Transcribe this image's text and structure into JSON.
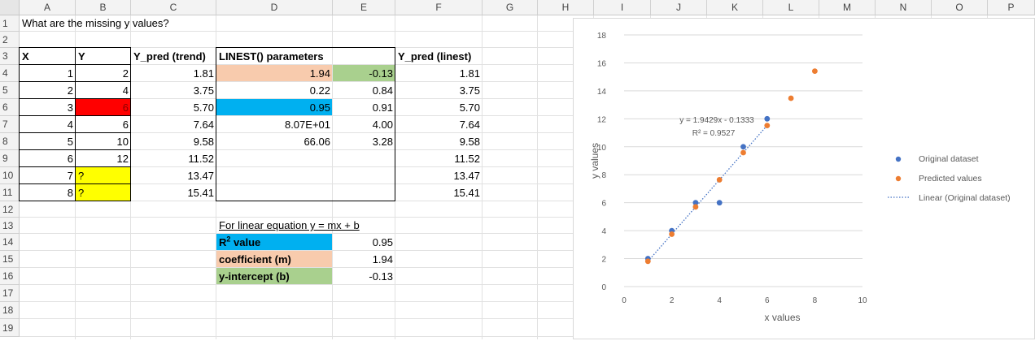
{
  "column_headers": [
    "A",
    "B",
    "C",
    "D",
    "E",
    "F",
    "G",
    "H",
    "I",
    "J",
    "K",
    "L",
    "M",
    "N",
    "O",
    "P"
  ],
  "row_headers": [
    "1",
    "2",
    "3",
    "4",
    "5",
    "6",
    "7",
    "8",
    "9",
    "10",
    "11",
    "12",
    "13",
    "14",
    "15",
    "16",
    "17",
    "18",
    "19"
  ],
  "colors": {
    "peach": "#f8cbad",
    "green": "#a9d08e",
    "blue": "#00b0f0",
    "red": "#ff0000",
    "yellow": "#ffff00",
    "series_original": "#4472c4",
    "series_predicted": "#ed7d31"
  },
  "cells": {
    "A1": "What are the missing y values?",
    "A3": "X",
    "B3": "Y",
    "C3": "Y_pred (trend)",
    "D3": "LINEST() parameters",
    "F3": "Y_pred (linest)",
    "A4": "1",
    "B4": "2",
    "C4": "1.81",
    "D4": "1.94",
    "E4": "-0.13",
    "F4": "1.81",
    "A5": "2",
    "B5": "4",
    "C5": "3.75",
    "D5": "0.22",
    "E5": "0.84",
    "F5": "3.75",
    "A6": "3",
    "B6": "6",
    "C6": "5.70",
    "D6": "0.95",
    "E6": "0.91",
    "F6": "5.70",
    "A7": "4",
    "B7": "6",
    "C7": "7.64",
    "D7": "8.07E+01",
    "E7": "4.00",
    "F7": "7.64",
    "A8": "5",
    "B8": "10",
    "C8": "9.58",
    "D8": "66.06",
    "E8": "3.28",
    "F8": "9.58",
    "A9": "6",
    "B9": "12",
    "C9": "11.52",
    "F9": "11.52",
    "A10": "7",
    "B10": "?",
    "C10": "13.47",
    "F10": "13.47",
    "A11": "8",
    "B11": "?",
    "C11": "15.41",
    "F11": "15.41",
    "D13": "For linear equation y = mx + b",
    "D14_main": "R",
    "D14_sup": "2",
    "D14_rest": " value",
    "E14": "0.95",
    "D15": "coefficient (m)",
    "E15": "1.94",
    "D16": "y-intercept (b)",
    "E16": "-0.13"
  },
  "chart_data": {
    "type": "scatter",
    "xlabel": "x values",
    "ylabel": "y values",
    "xlim": [
      0,
      10
    ],
    "ylim": [
      0,
      18
    ],
    "x_ticks": [
      "0",
      "2",
      "4",
      "6",
      "8",
      "10"
    ],
    "y_ticks": [
      "0",
      "2",
      "4",
      "6",
      "8",
      "10",
      "12",
      "14",
      "16",
      "18"
    ],
    "grid": "horizontal",
    "legend_position": "right",
    "series": [
      {
        "name": "Original dataset",
        "color": "#4472c4",
        "points": [
          [
            1,
            2
          ],
          [
            2,
            4
          ],
          [
            3,
            6
          ],
          [
            4,
            6
          ],
          [
            5,
            10
          ],
          [
            6,
            12
          ]
        ]
      },
      {
        "name": "Predicted values",
        "color": "#ed7d31",
        "points": [
          [
            1,
            1.81
          ],
          [
            2,
            3.75
          ],
          [
            3,
            5.7
          ],
          [
            4,
            7.64
          ],
          [
            5,
            9.58
          ],
          [
            6,
            11.52
          ],
          [
            7,
            13.47
          ],
          [
            8,
            15.41
          ]
        ]
      }
    ],
    "trendline": {
      "name": "Linear (Original dataset)",
      "slope": 1.9429,
      "intercept": -0.1333,
      "x_range": [
        1,
        6
      ],
      "equation": "y = 1.9429x - 0.1333",
      "r2": "R² = 0.9527"
    }
  }
}
